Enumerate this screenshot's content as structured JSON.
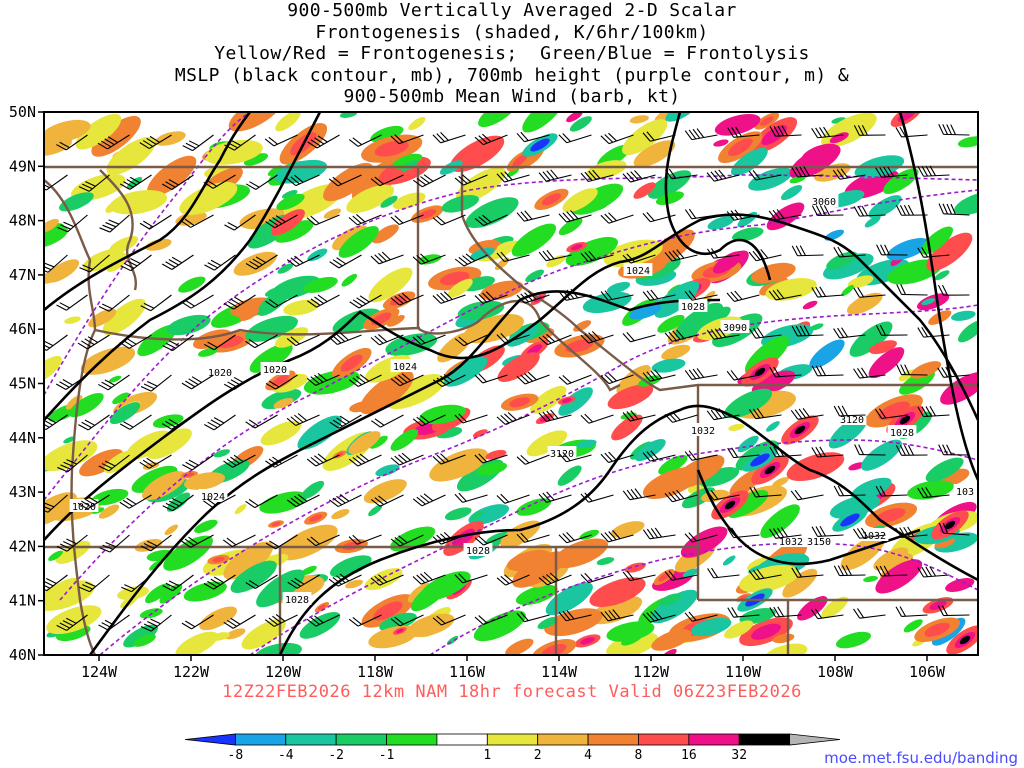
{
  "title_lines": [
    "900-500mb Vertically Averaged 2-D Scalar",
    "Frontogenesis (shaded, K/6hr/100km)",
    "Yellow/Red = Frontogenesis;  Green/Blue = Frontolysis",
    "MSLP (black contour, mb), 700mb height (purple contour, m) &",
    "900-500mb Mean Wind (barb, kt)"
  ],
  "lat_labels": [
    "50N",
    "49N",
    "48N",
    "47N",
    "46N",
    "45N",
    "44N",
    "43N",
    "42N",
    "41N",
    "40N"
  ],
  "lon_labels": [
    "124W",
    "122W",
    "120W",
    "118W",
    "116W",
    "114W",
    "112W",
    "110W",
    "108W",
    "106W"
  ],
  "valid_text": "12Z22FEB2026 12km NAM 18hr forecast Valid 06Z23FEB2026",
  "credit_text": "moe.met.fsu.edu/banding",
  "colorbar": {
    "labels": [
      "-8",
      "-4",
      "-2",
      "-1",
      "1",
      "2",
      "4",
      "8",
      "16",
      "32"
    ],
    "colors": [
      "#1a33ff",
      "#19a4e6",
      "#19c6a0",
      "#19cc66",
      "#22dd22",
      "#ffffff",
      "#e6e63c",
      "#f0b43c",
      "#f08232",
      "#ff4d4d",
      "#ee1188",
      "#000000",
      "#b4b4b4"
    ]
  },
  "contour_labels": {
    "mslp": [
      "1020",
      "1020",
      "1020",
      "1024",
      "1024",
      "1024",
      "1028",
      "1028",
      "1028",
      "1032",
      "1032",
      "1032",
      "1028",
      "103"
    ],
    "height": [
      "3060",
      "3090",
      "3120",
      "3120",
      "3150"
    ]
  },
  "colors": {
    "mslp": "#000000",
    "height": "#9b1bcc",
    "borders": "#7a5a48",
    "valid_text": "#ff5c5c",
    "credit": "#4a4aff"
  }
}
